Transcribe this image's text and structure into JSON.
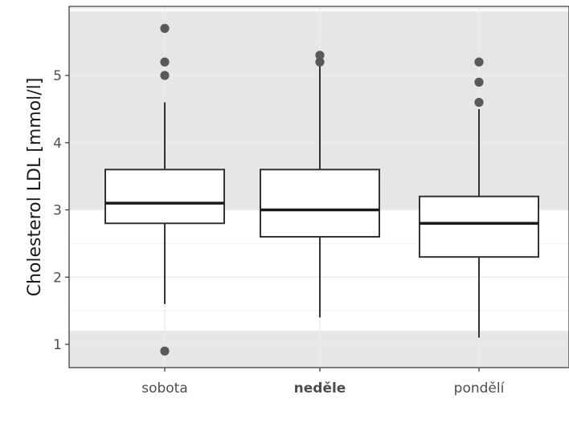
{
  "chart_data": {
    "type": "box",
    "title": "",
    "xlabel": "",
    "ylabel": "Cholesterol LDL [mmol/l]",
    "ylim": [
      0.65,
      5.95
    ],
    "yticks": [
      1,
      2,
      3,
      4,
      5
    ],
    "grid": true,
    "legend": "none",
    "categories": [
      {
        "label": "sobota",
        "bold": false
      },
      {
        "label": "neděle",
        "bold": true
      },
      {
        "label": "pondělí",
        "bold": false
      }
    ],
    "boxes": [
      {
        "category": "sobota",
        "whisker_low": 1.6,
        "q1": 2.8,
        "median": 3.1,
        "q3": 3.6,
        "whisker_high": 4.6,
        "outliers": [
          0.9,
          5.0,
          5.2,
          5.7
        ]
      },
      {
        "category": "neděle",
        "whisker_low": 1.4,
        "q1": 2.6,
        "median": 3.0,
        "q3": 3.6,
        "whisker_high": 5.15,
        "outliers": [
          5.2,
          5.3
        ]
      },
      {
        "category": "pondělí",
        "whisker_low": 1.1,
        "q1": 2.3,
        "median": 2.8,
        "q3": 3.2,
        "whisker_high": 4.5,
        "outliers": [
          4.6,
          4.9,
          5.2
        ]
      }
    ],
    "reference_bands": [
      {
        "from": 3.0,
        "to": 5.95
      },
      {
        "from": 0.65,
        "to": 1.2
      }
    ],
    "colors": {
      "band": "#e6e6e6",
      "grid": "#ebebeb",
      "box_stroke": "#333333",
      "median": "#1a1a1a",
      "outlier": "#595959",
      "panel_border": "#333333"
    }
  }
}
